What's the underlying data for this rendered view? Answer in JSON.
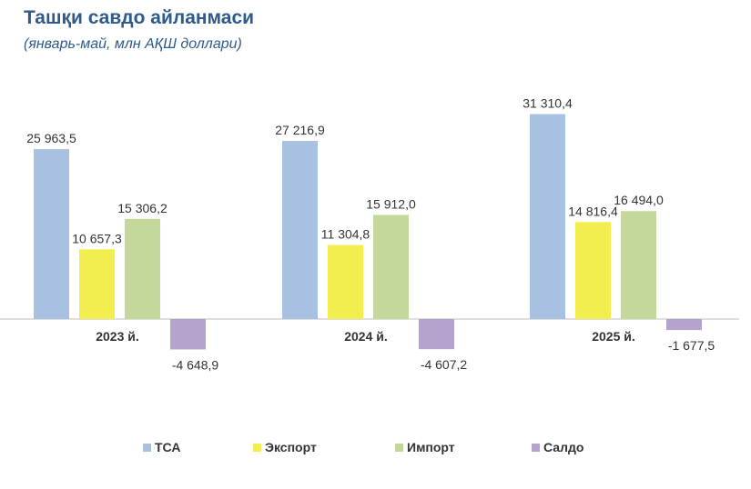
{
  "title": "Ташқи савдо айланмаси",
  "subtitle": "(январь-май, млн АҚШ доллари)",
  "chart_data": {
    "type": "bar",
    "categories": [
      "2023 й.",
      "2024 й.",
      "2025 й."
    ],
    "series": [
      {
        "name": "ТСА",
        "color": "#A9C1E0",
        "values": [
          25963.5,
          27216.9,
          31310.4
        ],
        "labels": [
          "25 963,5",
          "27 216,9",
          "31 310,4"
        ]
      },
      {
        "name": "Экспорт",
        "color": "#F2EE4F",
        "values": [
          10657.3,
          11304.8,
          14816.4
        ],
        "labels": [
          "10 657,3",
          "11 304,8",
          "14 816,4"
        ]
      },
      {
        "name": "Импорт",
        "color": "#C3D89A",
        "values": [
          15306.2,
          15912.0,
          16494.0
        ],
        "labels": [
          "15 306,2",
          "15 912,0",
          "16 494,0"
        ]
      },
      {
        "name": "Салдо",
        "color": "#B4A3CC",
        "values": [
          -4648.9,
          -4607.2,
          -1677.5
        ],
        "labels": [
          "-4 648,9",
          "-4 607,2",
          "-1 677,5"
        ]
      }
    ],
    "legend_position": "bottom",
    "grid": false
  }
}
